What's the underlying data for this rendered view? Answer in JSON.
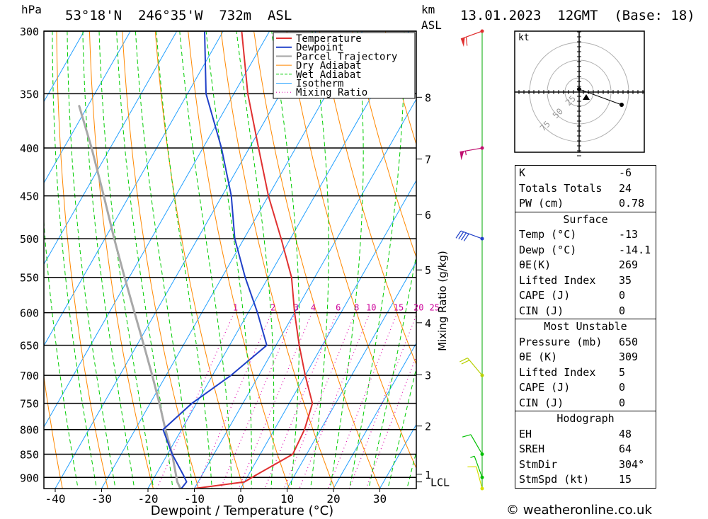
{
  "header": {
    "hpa_label": "hPa",
    "location": "53°18'N  246°35'W  732m  ASL",
    "km_label": "km",
    "asl_label": "ASL",
    "datetime": "13.01.2023  12GMT  (Base: 18)"
  },
  "chart_data": {
    "type": "skew-t",
    "title": "53°18'N  246°35'W  732m  ASL",
    "xlabel": "Dewpoint / Temperature (°C)",
    "ylabel": "hPa",
    "right_axis_label": "Mixing Ratio (g/kg)",
    "pressure_levels": [
      300,
      350,
      400,
      450,
      500,
      550,
      600,
      650,
      700,
      750,
      800,
      850,
      900
    ],
    "temperature_ticks": [
      -40,
      -30,
      -20,
      -10,
      0,
      10,
      20,
      30
    ],
    "xlim": [
      -43,
      38
    ],
    "ylim": [
      925,
      300
    ],
    "height_ticks_km": [
      {
        "label": "8",
        "p": 353
      },
      {
        "label": "7",
        "p": 411
      },
      {
        "label": "6",
        "p": 471
      },
      {
        "label": "5",
        "p": 540
      },
      {
        "label": "4",
        "p": 615
      },
      {
        "label": "3",
        "p": 699
      },
      {
        "label": "2",
        "p": 793
      },
      {
        "label": "1",
        "p": 893
      }
    ],
    "lcl_label": "LCL",
    "lcl_pressure": 910,
    "mixing_ratio_labels": [
      "1",
      "2",
      "3",
      "4",
      "6",
      "8",
      "10",
      "15",
      "20",
      "25"
    ],
    "legend": [
      "Temperature",
      "Dewpoint",
      "Parcel Trajectory",
      "Dry Adiabat",
      "Wet Adiabat",
      "Isotherm",
      "Mixing Ratio"
    ],
    "series": [
      {
        "name": "Temperature",
        "color": "#e03030",
        "points": [
          [
            925,
            -10
          ],
          [
            910,
            0
          ],
          [
            895,
            1.6
          ],
          [
            850,
            7
          ],
          [
            800,
            6.5
          ],
          [
            750,
            5
          ],
          [
            700,
            0
          ],
          [
            650,
            -5
          ],
          [
            600,
            -10
          ],
          [
            550,
            -15
          ],
          [
            500,
            -22
          ],
          [
            450,
            -30
          ],
          [
            400,
            -38
          ],
          [
            350,
            -47
          ],
          [
            300,
            -56
          ]
        ]
      },
      {
        "name": "Dewpoint",
        "color": "#2040c8",
        "points": [
          [
            925,
            -12.8
          ],
          [
            910,
            -12.5
          ],
          [
            895,
            -14
          ],
          [
            850,
            -19
          ],
          [
            800,
            -24
          ],
          [
            750,
            -21
          ],
          [
            700,
            -16
          ],
          [
            650,
            -12
          ],
          [
            600,
            -18
          ],
          [
            550,
            -25
          ],
          [
            500,
            -32
          ],
          [
            450,
            -38
          ],
          [
            400,
            -46
          ],
          [
            350,
            -56
          ],
          [
            300,
            -64
          ]
        ]
      },
      {
        "name": "Parcel Trajectory",
        "color": "#a8a8a8",
        "points": [
          [
            925,
            -13
          ],
          [
            910,
            -14.5
          ],
          [
            850,
            -19
          ],
          [
            800,
            -23.5
          ],
          [
            750,
            -28
          ],
          [
            700,
            -33
          ],
          [
            650,
            -38.5
          ],
          [
            600,
            -44.5
          ],
          [
            550,
            -51
          ],
          [
            500,
            -58
          ],
          [
            450,
            -65.5
          ],
          [
            400,
            -74
          ],
          [
            360,
            -82
          ]
        ]
      }
    ],
    "wind_barbs": [
      {
        "p": 300,
        "color": "#e03030",
        "dir": 250,
        "kt": 60
      },
      {
        "p": 400,
        "color": "#c01070",
        "dir": 260,
        "kt": 55
      },
      {
        "p": 500,
        "color": "#2040c8",
        "dir": 290,
        "kt": 40
      },
      {
        "p": 700,
        "color": "#b8d000",
        "dir": 320,
        "kt": 20
      },
      {
        "p": 850,
        "color": "#00c000",
        "dir": 330,
        "kt": 10
      },
      {
        "p": 900,
        "color": "#00c000",
        "dir": 340,
        "kt": 8
      },
      {
        "p": 925,
        "color": "#d8e000",
        "dir": 345,
        "kt": 10
      }
    ]
  },
  "hodograph": {
    "unit_label": "kt",
    "ring_labels": [
      "25",
      "50",
      "75"
    ]
  },
  "stats": {
    "indices": [
      {
        "label": "K",
        "value": "-6"
      },
      {
        "label": "Totals Totals",
        "value": "24"
      },
      {
        "label": "PW (cm)",
        "value": "0.78"
      }
    ],
    "surface": {
      "title": "Surface",
      "rows": [
        {
          "label": "Temp (°C)",
          "value": "-13"
        },
        {
          "label": "Dewp (°C)",
          "value": "-14.1"
        },
        {
          "label": "θE(K)",
          "value": "269"
        },
        {
          "label": "Lifted Index",
          "value": "35"
        },
        {
          "label": "CAPE (J)",
          "value": "0"
        },
        {
          "label": "CIN (J)",
          "value": "0"
        }
      ]
    },
    "most_unstable": {
      "title": "Most Unstable",
      "rows": [
        {
          "label": "Pressure (mb)",
          "value": "650"
        },
        {
          "label": "θE (K)",
          "value": "309"
        },
        {
          "label": "Lifted Index",
          "value": "5"
        },
        {
          "label": "CAPE (J)",
          "value": "0"
        },
        {
          "label": "CIN (J)",
          "value": "0"
        }
      ]
    },
    "hodograph": {
      "title": "Hodograph",
      "rows": [
        {
          "label": "EH",
          "value": "48"
        },
        {
          "label": "SREH",
          "value": "64"
        },
        {
          "label": "StmDir",
          "value": "304°"
        },
        {
          "label": "StmSpd (kt)",
          "value": "15"
        }
      ]
    }
  },
  "footer": {
    "copyright": "© weatheronline.co.uk"
  }
}
